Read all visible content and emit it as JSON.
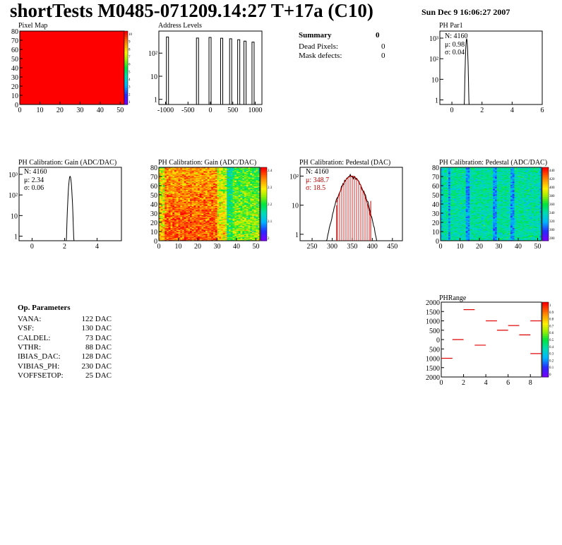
{
  "header": {
    "title": "shortTests M0485-071209.14:27 T+17a (C10)",
    "date": "Sun Dec  9 16:06:27 2007"
  },
  "summary": {
    "title": "Summary",
    "count": "0",
    "rows": [
      {
        "label": "Dead Pixels:",
        "value": "0"
      },
      {
        "label": "Mask defects:",
        "value": "0"
      }
    ]
  },
  "op_params": {
    "title": "Op. Parameters",
    "rows": [
      {
        "label": "VANA:",
        "value": "122 DAC"
      },
      {
        "label": "VSF:",
        "value": "130 DAC"
      },
      {
        "label": "CALDEL:",
        "value": "73 DAC"
      },
      {
        "label": "VTHR:",
        "value": "88 DAC"
      },
      {
        "label": "IBIAS_DAC:",
        "value": "128 DAC"
      },
      {
        "label": "VIBIAS_PH:",
        "value": "230 DAC"
      },
      {
        "label": "VOFFSETOP:",
        "value": "25 DAC"
      }
    ]
  },
  "chart_data": [
    {
      "id": "pixelmap",
      "type": "heatmap",
      "title": "Pixel Map",
      "x_ticks": [
        "0",
        "10",
        "20",
        "30",
        "40",
        "50"
      ],
      "y_ticks": [
        "0",
        "10",
        "20",
        "30",
        "40",
        "50",
        "60",
        "70",
        "80"
      ],
      "xlim": [
        0,
        52
      ],
      "ylim": [
        0,
        80
      ],
      "uniform_value": 10,
      "palette_ticks": [
        "10",
        "9",
        "8",
        "7",
        "6",
        "5",
        "4",
        "3",
        "2",
        "1"
      ]
    },
    {
      "id": "address",
      "type": "bar",
      "title": "Address Levels",
      "log_y": true,
      "x_ticks": [
        "-1000",
        "-500",
        "0",
        "500",
        "1000"
      ],
      "y_ticks": [
        "1",
        "10",
        "10²"
      ],
      "xlim": [
        -1150,
        1150
      ],
      "peaks": [
        {
          "x": -950,
          "y": 500
        },
        {
          "x": -280,
          "y": 450
        },
        {
          "x": 0,
          "y": 480
        },
        {
          "x": 260,
          "y": 440
        },
        {
          "x": 460,
          "y": 420
        },
        {
          "x": 640,
          "y": 380
        },
        {
          "x": 780,
          "y": 330
        },
        {
          "x": 960,
          "y": 300
        }
      ]
    },
    {
      "id": "phpar1",
      "type": "bar",
      "title": "PH Par1",
      "log_y": true,
      "x_ticks": [
        "0",
        "2",
        "4",
        "6"
      ],
      "y_ticks": [
        "1",
        "10",
        "10²",
        "10³"
      ],
      "xlim": [
        -0.8,
        6
      ],
      "stats": {
        "N": "N: 4160",
        "mean": "μ: 0.98",
        "sigma": "σ: 0.04"
      },
      "mean": 0.98,
      "sigma": 0.04,
      "peak": 900
    },
    {
      "id": "gain1d",
      "type": "bar",
      "title": "PH Calibration: Gain (ADC/DAC)",
      "log_y": true,
      "x_ticks": [
        "0",
        "2",
        "4"
      ],
      "y_ticks": [
        "1",
        "10",
        "10²",
        "10³"
      ],
      "xlim": [
        -0.8,
        5.5
      ],
      "stats": {
        "N": "N: 4160",
        "mean": "μ: 2.34",
        "sigma": "σ: 0.06"
      },
      "mean": 2.34,
      "sigma": 0.06,
      "peak": 800
    },
    {
      "id": "gainmap",
      "type": "heatmap",
      "title": "PH Calibration: Gain (ADC/DAC)",
      "x_ticks": [
        "0",
        "10",
        "20",
        "30",
        "40",
        "50"
      ],
      "y_ticks": [
        "0",
        "10",
        "20",
        "30",
        "40",
        "50",
        "60",
        "70",
        "80"
      ],
      "xlim": [
        0,
        52
      ],
      "ylim": [
        0,
        80
      ],
      "palette_ticks": [
        "2.4",
        "2.3",
        "2.2",
        "2.1",
        "2"
      ]
    },
    {
      "id": "pedestal1d",
      "type": "bar",
      "title": "PH Calibration: Pedestal (DAC)",
      "log_y": true,
      "x_ticks": [
        "250",
        "300",
        "350",
        "400",
        "450"
      ],
      "y_ticks": [
        "1",
        "10",
        "10²"
      ],
      "xlim": [
        220,
        475
      ],
      "stats": {
        "N": "N: 4160",
        "mean": "μ: 348.7",
        "sigma": "σ: 18.5"
      },
      "mean": 348.7,
      "sigma": 18.5,
      "peak": 100,
      "fit_range": [
        311,
        396
      ]
    },
    {
      "id": "pedestalmap",
      "type": "heatmap",
      "title": "PH Calibration: Pedestal (ADC/DAC)",
      "x_ticks": [
        "0",
        "10",
        "20",
        "30",
        "40",
        "50"
      ],
      "y_ticks": [
        "0",
        "10",
        "20",
        "30",
        "40",
        "50",
        "60",
        "70",
        "80"
      ],
      "xlim": [
        0,
        52
      ],
      "ylim": [
        0,
        80
      ],
      "palette_ticks": [
        "440",
        "420",
        "400",
        "380",
        "360",
        "340",
        "320",
        "300",
        "280"
      ]
    },
    {
      "id": "phrange",
      "type": "scatter",
      "title": "PHRange",
      "x_ticks": [
        "0",
        "2",
        "4",
        "6",
        "8"
      ],
      "y_ticks": [
        "2000",
        "1500",
        "1000",
        "500",
        "0",
        "500",
        "1000",
        "1500",
        "2000"
      ],
      "xlim": [
        0,
        9
      ],
      "ylim": [
        -2000,
        2000
      ],
      "segments": [
        {
          "x": 0.5,
          "y": -1000
        },
        {
          "x": 1.5,
          "y": 0
        },
        {
          "x": 2.5,
          "y": 1600
        },
        {
          "x": 3.5,
          "y": -300
        },
        {
          "x": 4.5,
          "y": 1000
        },
        {
          "x": 5.5,
          "y": 500
        },
        {
          "x": 6.5,
          "y": 750
        },
        {
          "x": 7.5,
          "y": 250
        },
        {
          "x": 8.5,
          "y": 1000
        },
        {
          "x": 8.5,
          "y": -750
        }
      ],
      "palette_ticks": [
        "1",
        "0.9",
        "0.8",
        "0.7",
        "0.6",
        "0.5",
        "0.4",
        "0.3",
        "0.2",
        "0.1",
        "0"
      ]
    }
  ]
}
